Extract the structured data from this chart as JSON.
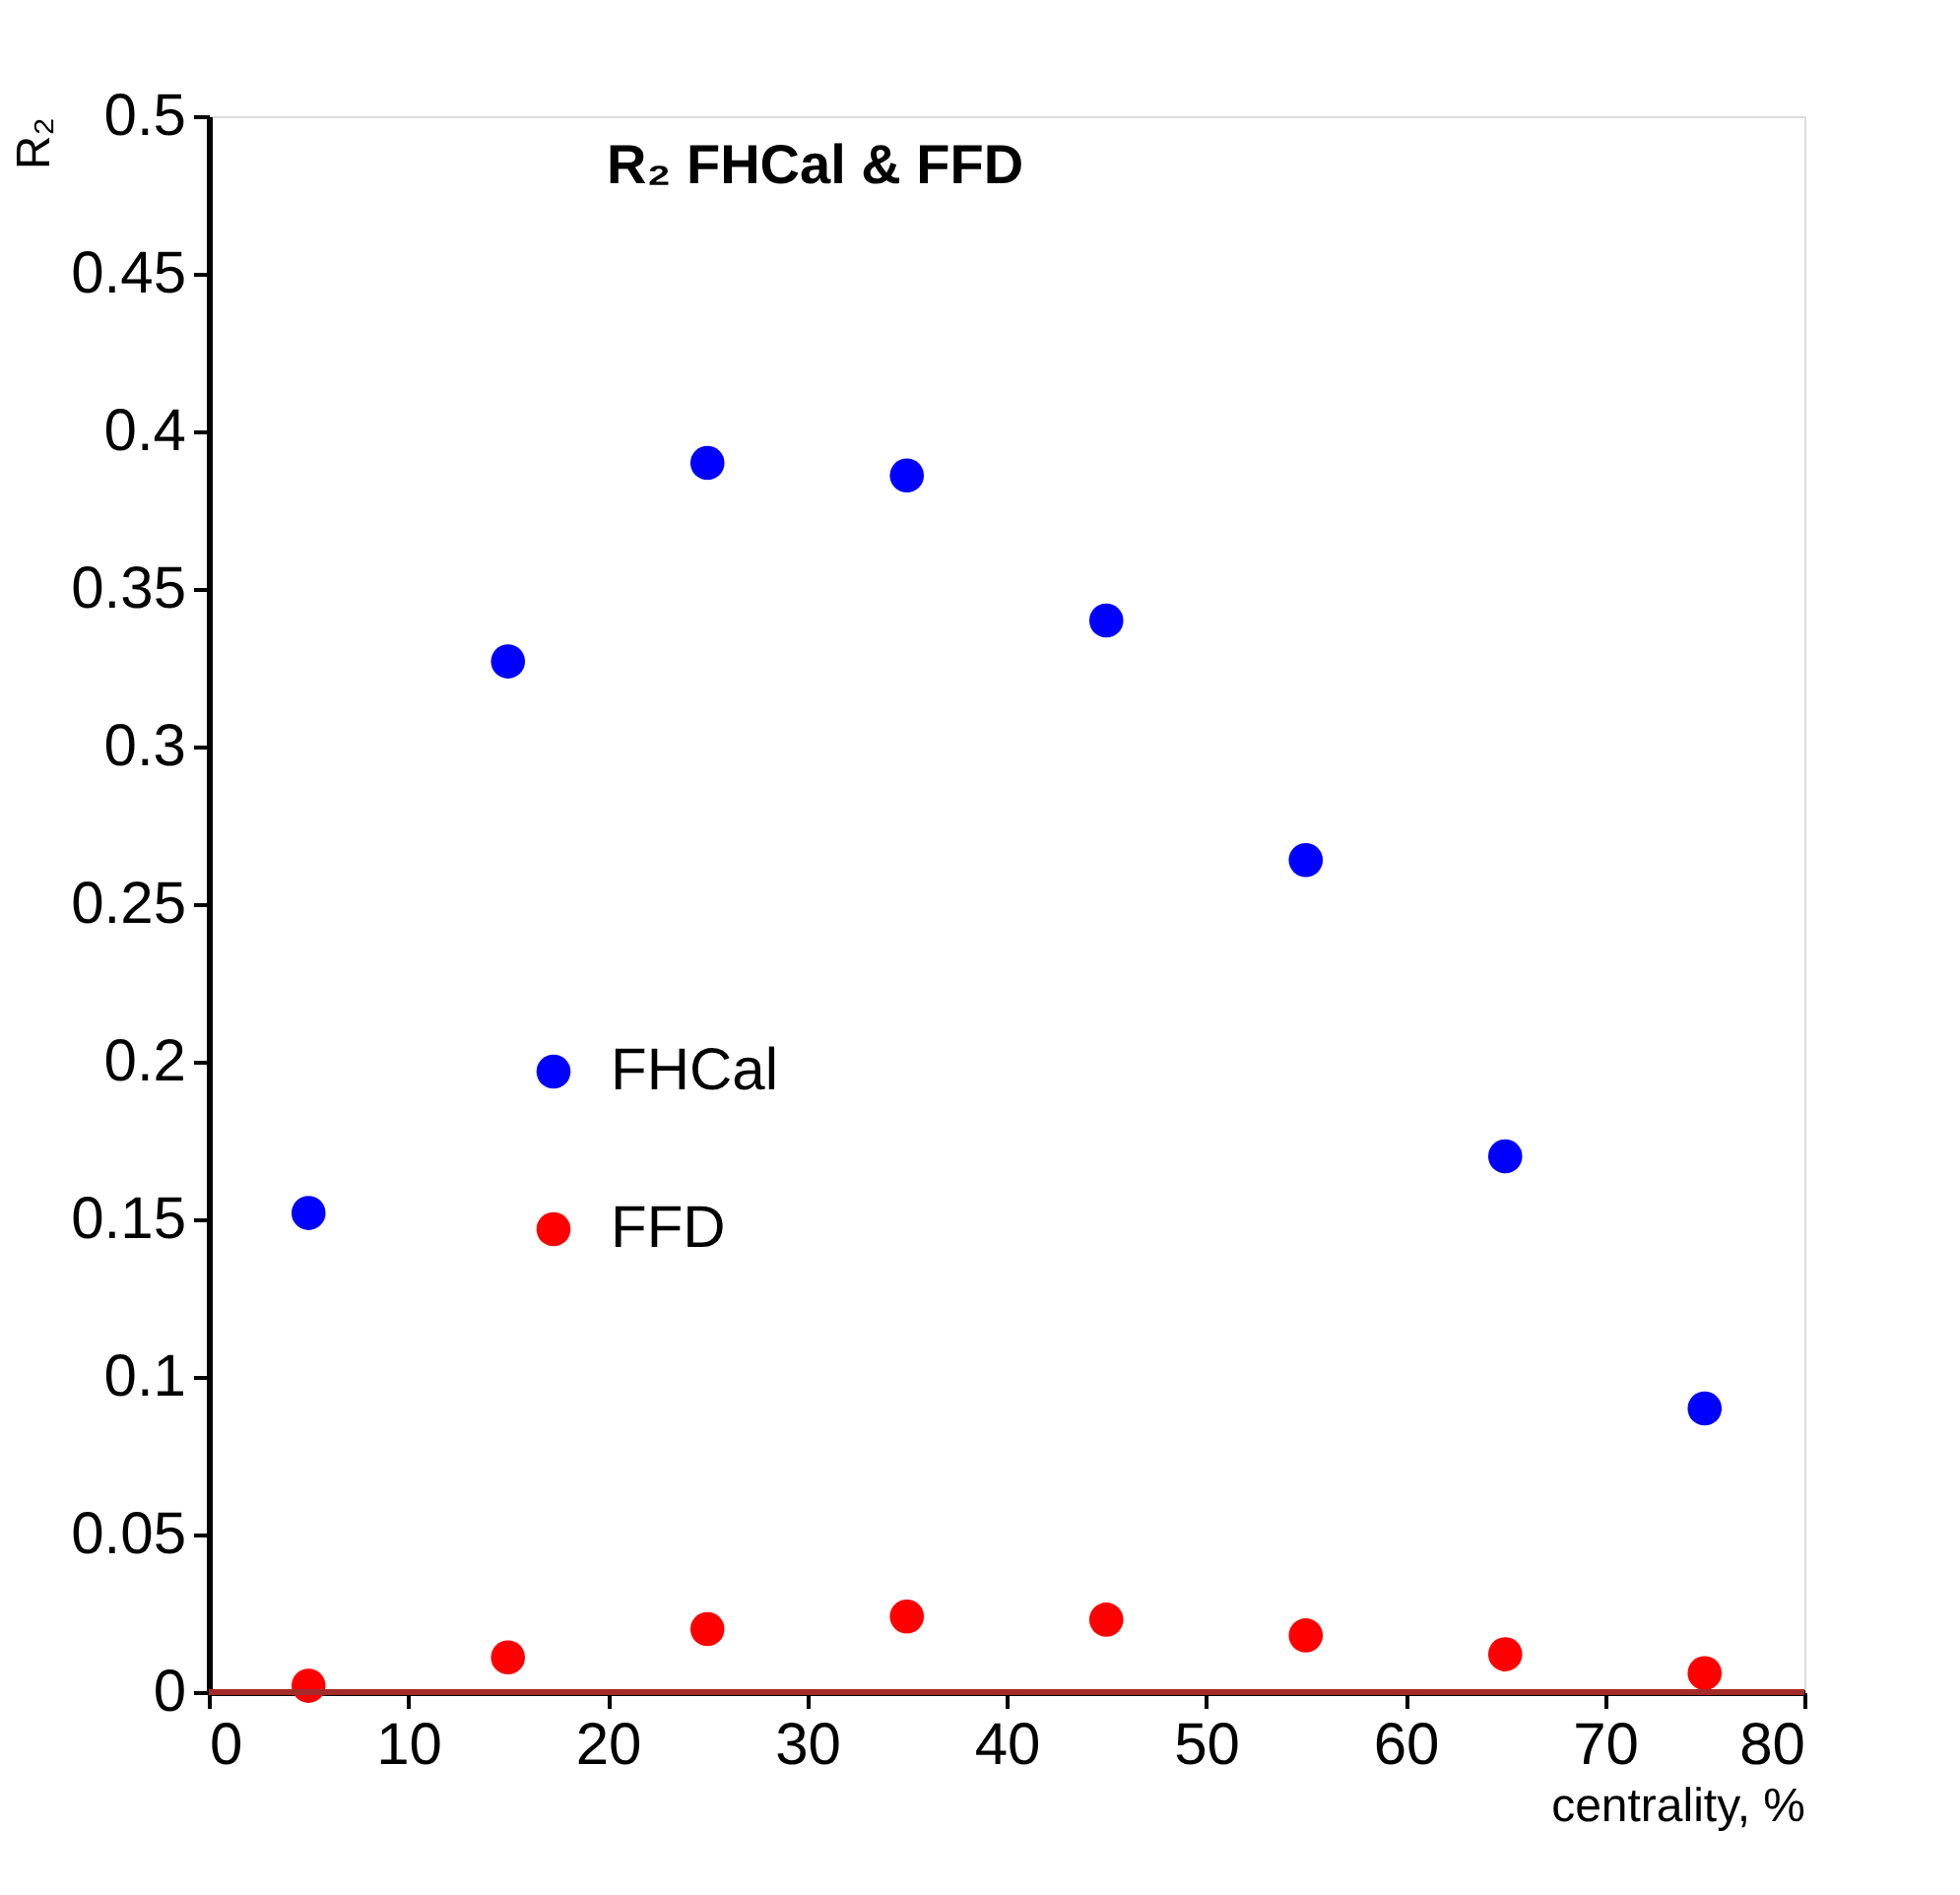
{
  "chart_data": {
    "type": "scatter",
    "title": "R₂ FHCal & FFD",
    "xlabel": "centrality, %",
    "ylabel": "R₂",
    "x": [
      5,
      15,
      25,
      35,
      45,
      55,
      65,
      75
    ],
    "series": [
      {
        "name": "FHCal",
        "color": "#0000ff",
        "values": [
          0.152,
          0.327,
          0.39,
          0.386,
          0.34,
          0.264,
          0.17,
          0.09
        ]
      },
      {
        "name": "FFD",
        "color": "#ff0000",
        "values": [
          0.002,
          0.011,
          0.02,
          0.024,
          0.023,
          0.018,
          0.012,
          0.006
        ]
      }
    ],
    "xlim": [
      0,
      80
    ],
    "xticks": [
      0,
      10,
      20,
      30,
      40,
      50,
      60,
      70,
      80
    ],
    "ylim": [
      0,
      0.5
    ],
    "yticks": [
      0,
      0.05,
      0.1,
      0.15,
      0.2,
      0.25,
      0.3,
      0.35,
      0.4,
      0.45,
      0.5
    ],
    "ref_lines": [
      {
        "axis": "y",
        "value": 0,
        "color": "#a52a2a"
      }
    ],
    "marker": "circle",
    "grid": false,
    "legend": "left"
  }
}
